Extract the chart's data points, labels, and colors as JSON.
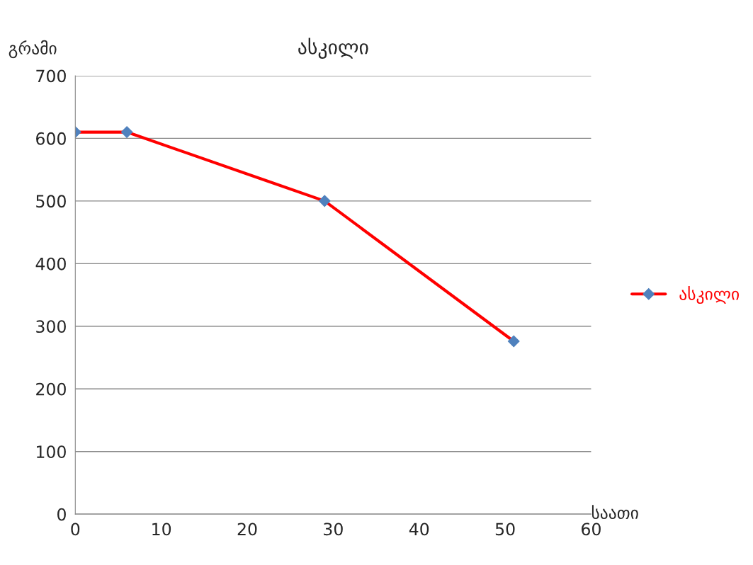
{
  "chart_data": {
    "type": "line",
    "title": "ასკილი",
    "xlabel": "საათი",
    "ylabel": "გრამი",
    "x": [
      0,
      6,
      29,
      51
    ],
    "series": [
      {
        "name": "ასკილი",
        "color": "#ff0000",
        "values": [
          610,
          610,
          500,
          276
        ]
      }
    ],
    "xlim": [
      0,
      60
    ],
    "xticks": [
      0,
      10,
      20,
      30,
      40,
      50,
      60
    ],
    "ylim": [
      0,
      700
    ],
    "yticks": [
      0,
      100,
      200,
      300,
      400,
      500,
      600,
      700
    ],
    "grid": "y",
    "legend": "right",
    "marker": "diamond",
    "line_style": "solid"
  }
}
